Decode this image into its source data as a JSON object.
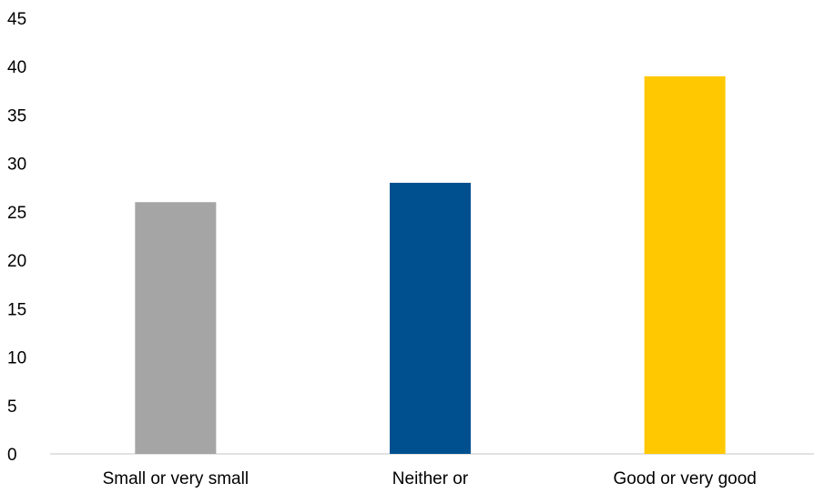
{
  "chart_data": {
    "type": "bar",
    "title": "",
    "xlabel": "",
    "ylabel": "",
    "categories": [
      "Small or very small",
      "Neither or",
      "Good or very good"
    ],
    "values": [
      26,
      28,
      39
    ],
    "colors": [
      "#A5A5A5",
      "#00508F",
      "#FFC800"
    ],
    "ylim": [
      0,
      45
    ],
    "yticks": [
      "0",
      "5",
      "10",
      "15",
      "20",
      "25",
      "30",
      "35",
      "40",
      "45"
    ],
    "grid": false,
    "legend": "none"
  }
}
